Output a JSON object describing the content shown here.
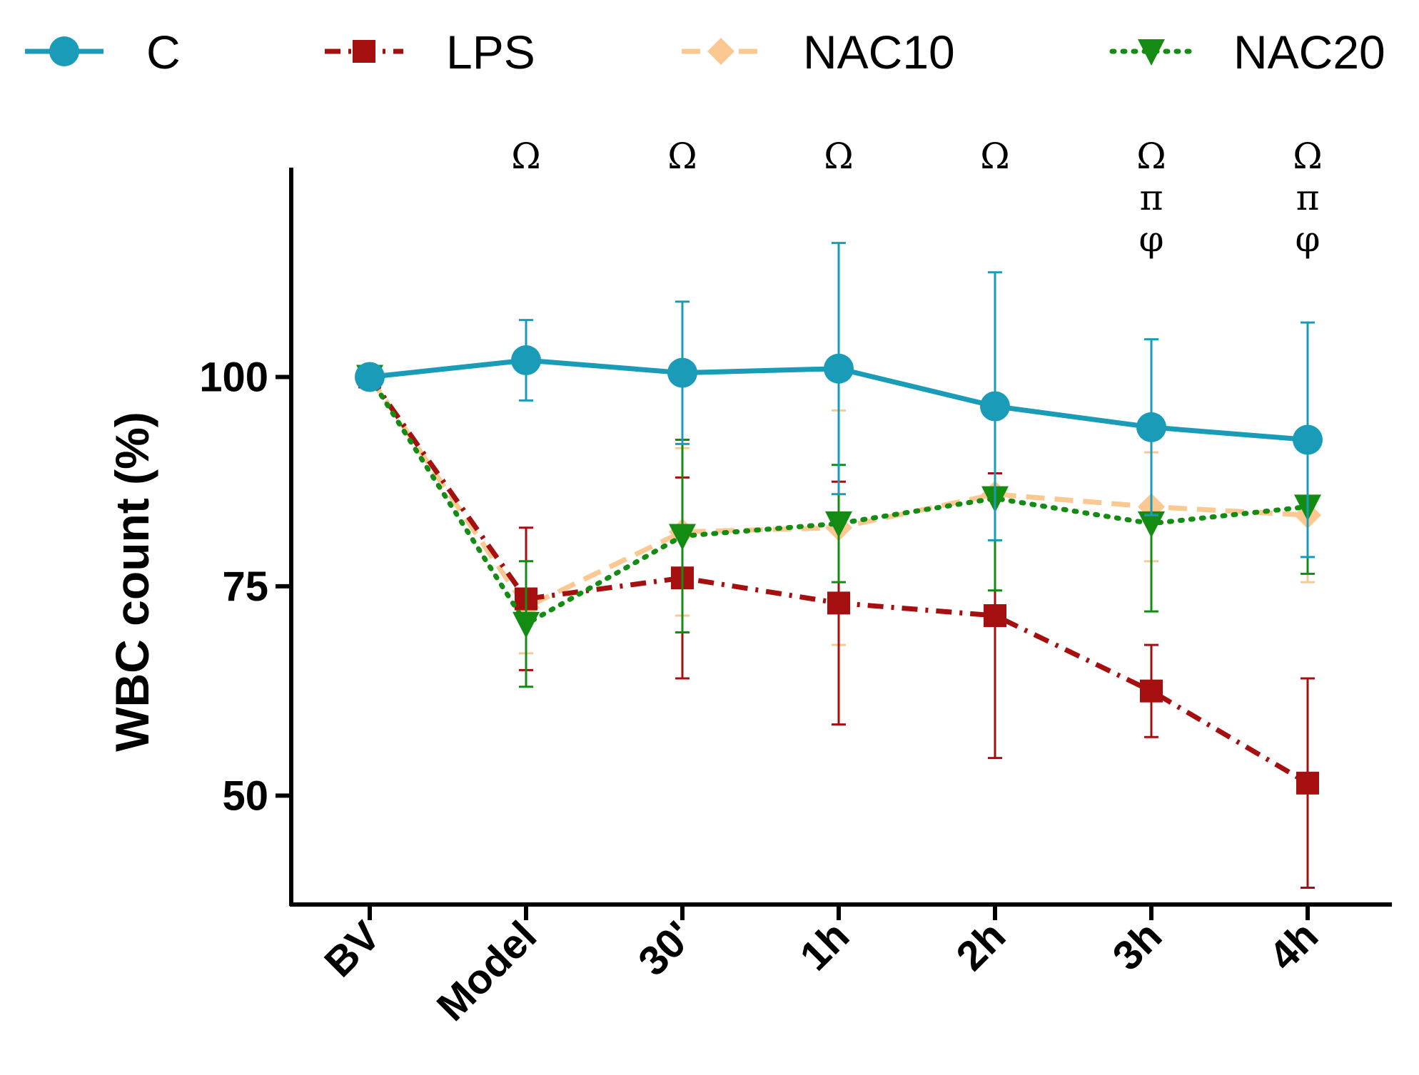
{
  "chart_data": {
    "type": "line",
    "title": "",
    "xlabel": "",
    "ylabel": "WBC count (%)",
    "categories": [
      "BV",
      "Model",
      "30'",
      "1h",
      "2h",
      "3h",
      "4h"
    ],
    "ylim": [
      37,
      125
    ],
    "yticks": [
      50,
      75,
      100
    ],
    "grid": false,
    "legend_position": "top",
    "series": [
      {
        "name": "C",
        "color": "#1a9cb8",
        "marker": "circle",
        "line_style": "solid",
        "values": [
          100,
          102,
          100.5,
          101,
          96.5,
          94,
          92.5
        ],
        "errors": [
          0,
          4.8,
          8.5,
          15,
          16,
          10.5,
          14
        ]
      },
      {
        "name": "LPS",
        "color": "#a60f0f",
        "marker": "square",
        "line_style": "dash-dot",
        "values": [
          100,
          73.5,
          76,
          73,
          71.5,
          62.5,
          51.5
        ],
        "errors": [
          0,
          8.5,
          12,
          14.5,
          17,
          5.5,
          12.5
        ]
      },
      {
        "name": "NAC10",
        "color": "#fbc892",
        "marker": "diamond",
        "line_style": "dashed",
        "values": [
          100,
          72.5,
          81.5,
          82,
          86,
          84.5,
          83.5
        ],
        "errors": [
          0,
          5.5,
          10,
          14,
          11.5,
          6.5,
          8
        ]
      },
      {
        "name": "NAC20",
        "color": "#148c14",
        "marker": "triangle-down",
        "line_style": "dotted",
        "values": [
          100,
          70.5,
          81,
          82.5,
          85.5,
          82.5,
          84.5
        ],
        "errors": [
          0,
          7.5,
          11.5,
          7,
          11,
          10.5,
          8
        ]
      }
    ],
    "annotations": [
      {
        "category": "Model",
        "symbols": [
          "Ω"
        ]
      },
      {
        "category": "30'",
        "symbols": [
          "Ω"
        ]
      },
      {
        "category": "1h",
        "symbols": [
          "Ω"
        ]
      },
      {
        "category": "2h",
        "symbols": [
          "Ω"
        ]
      },
      {
        "category": "3h",
        "symbols": [
          "Ω",
          "π",
          "φ"
        ]
      },
      {
        "category": "4h",
        "symbols": [
          "Ω",
          "π",
          "φ"
        ]
      }
    ]
  }
}
